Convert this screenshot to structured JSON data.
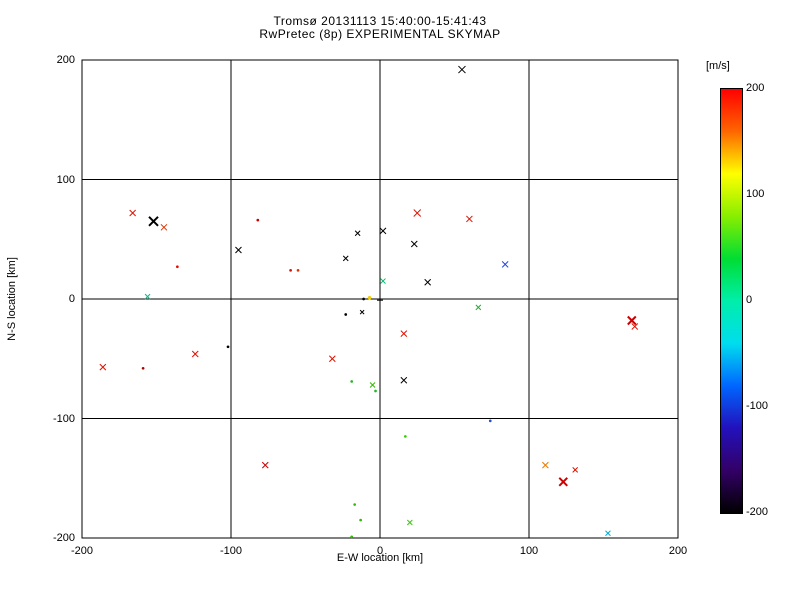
{
  "title": {
    "line1": "Tromsø 20131113 15:40:00-15:41:43",
    "line2": "RwPretec (8p) EXPERIMENTAL SKYMAP"
  },
  "axes": {
    "x_label": "E-W location [km]",
    "y_label": "N-S location [km]",
    "x_range": [
      -200,
      200
    ],
    "y_range": [
      -200,
      200
    ],
    "x_ticks": [
      -200,
      -100,
      0,
      100,
      200
    ],
    "y_ticks": [
      -200,
      -100,
      0,
      100,
      200
    ],
    "grid": "on",
    "frame_color": "#000000"
  },
  "colorbar": {
    "unit_label": "[m/s]",
    "ticks": [
      200,
      100,
      0,
      -100,
      -200
    ],
    "range": [
      -200,
      200
    ],
    "gradient_top_to_bottom": [
      "#ff0000",
      "#ff6600",
      "#ffff00",
      "#88ee00",
      "#00dd33",
      "#00eeaa",
      "#00ddee",
      "#0066ff",
      "#2211bb",
      "#330066",
      "#000000"
    ]
  },
  "chart_data": {
    "type": "scatter",
    "title": "Tromsø 20131113 15:40:00-15:41:43 / RwPretec (8p) EXPERIMENTAL SKYMAP",
    "xlabel": "E-W location [km]",
    "ylabel": "N-S location [km]",
    "xlim": [
      -200,
      200
    ],
    "ylim": [
      -200,
      200
    ],
    "color_scale": {
      "unit": "m/s",
      "min": -200,
      "max": 200,
      "map": "rainbow (red=+200, yellow=+100, green=0, blue=-100, black=-200)"
    },
    "points": [
      {
        "x": 55,
        "y": 192,
        "color": "#000000",
        "marker": "x",
        "size": 7,
        "w": 1
      },
      {
        "x": -166,
        "y": 72,
        "color": "#dd1100",
        "marker": "x",
        "size": 6,
        "w": 1
      },
      {
        "x": -152,
        "y": 65,
        "color": "#000000",
        "marker": "x",
        "size": 9,
        "w": 2
      },
      {
        "x": -145,
        "y": 60,
        "color": "#dd3300",
        "marker": "x",
        "size": 6,
        "w": 1
      },
      {
        "x": 25,
        "y": 72,
        "color": "#dd1100",
        "marker": "x",
        "size": 7,
        "w": 1
      },
      {
        "x": 60,
        "y": 67,
        "color": "#dd1100",
        "marker": "x",
        "size": 6,
        "w": 1
      },
      {
        "x": -82,
        "y": 66,
        "color": "#cc0000",
        "marker": "dot",
        "size": 3
      },
      {
        "x": -15,
        "y": 55,
        "color": "#000000",
        "marker": "x",
        "size": 5,
        "w": 1
      },
      {
        "x": 2,
        "y": 57,
        "color": "#000000",
        "marker": "x",
        "size": 6,
        "w": 1
      },
      {
        "x": -95,
        "y": 41,
        "color": "#000000",
        "marker": "x",
        "size": 6,
        "w": 1
      },
      {
        "x": 23,
        "y": 46,
        "color": "#000000",
        "marker": "x",
        "size": 6,
        "w": 1
      },
      {
        "x": -136,
        "y": 27,
        "color": "#dd1100",
        "marker": "dot",
        "size": 3
      },
      {
        "x": -60,
        "y": 24,
        "color": "#dd1100",
        "marker": "dot",
        "size": 3
      },
      {
        "x": -55,
        "y": 24,
        "color": "#dd3300",
        "marker": "dot",
        "size": 3
      },
      {
        "x": 84,
        "y": 29,
        "color": "#2244dd",
        "marker": "x",
        "size": 6,
        "w": 1
      },
      {
        "x": -23,
        "y": 34,
        "color": "#000000",
        "marker": "x",
        "size": 5,
        "w": 1
      },
      {
        "x": 32,
        "y": 14,
        "color": "#000000",
        "marker": "x",
        "size": 6,
        "w": 1
      },
      {
        "x": 2,
        "y": 15,
        "color": "#00bb66",
        "marker": "x",
        "size": 5,
        "w": 1
      },
      {
        "x": -156,
        "y": 2,
        "color": "#00bb88",
        "marker": "x",
        "size": 5,
        "w": 1
      },
      {
        "x": -11,
        "y": 0,
        "color": "#000000",
        "marker": "dot",
        "size": 3
      },
      {
        "x": -7,
        "y": 1,
        "color": "#eecc00",
        "marker": "dot",
        "size": 4
      },
      {
        "x": 0,
        "y": -1,
        "color": "#000000",
        "marker": "plus",
        "size": 6,
        "w": 1
      },
      {
        "x": -23,
        "y": -13,
        "color": "#000000",
        "marker": "dot",
        "size": 3
      },
      {
        "x": -12,
        "y": -11,
        "color": "#000000",
        "marker": "x",
        "size": 4,
        "w": 1
      },
      {
        "x": 66,
        "y": -7,
        "color": "#22aa33",
        "marker": "x",
        "size": 5,
        "w": 1
      },
      {
        "x": 169,
        "y": -18,
        "color": "#cc0000",
        "marker": "x",
        "size": 8,
        "w": 2
      },
      {
        "x": 171,
        "y": -23,
        "color": "#dd1100",
        "marker": "x",
        "size": 6,
        "w": 1
      },
      {
        "x": 16,
        "y": -29,
        "color": "#dd1100",
        "marker": "x",
        "size": 6,
        "w": 1
      },
      {
        "x": -102,
        "y": -40,
        "color": "#000000",
        "marker": "dot",
        "size": 3
      },
      {
        "x": -124,
        "y": -46,
        "color": "#dd1100",
        "marker": "x",
        "size": 6,
        "w": 1
      },
      {
        "x": -32,
        "y": -50,
        "color": "#dd1100",
        "marker": "x",
        "size": 6,
        "w": 1
      },
      {
        "x": -186,
        "y": -57,
        "color": "#dd1100",
        "marker": "x",
        "size": 6,
        "w": 1
      },
      {
        "x": -159,
        "y": -58,
        "color": "#aa0000",
        "marker": "dot",
        "size": 3
      },
      {
        "x": -19,
        "y": -69,
        "color": "#22bb22",
        "marker": "dot",
        "size": 3
      },
      {
        "x": -5,
        "y": -72,
        "color": "#33bb00",
        "marker": "x",
        "size": 5,
        "w": 1
      },
      {
        "x": 16,
        "y": -68,
        "color": "#000000",
        "marker": "x",
        "size": 6,
        "w": 1
      },
      {
        "x": -3,
        "y": -77,
        "color": "#22bb22",
        "marker": "dot",
        "size": 3
      },
      {
        "x": 17,
        "y": -115,
        "color": "#33cc00",
        "marker": "dot",
        "size": 3
      },
      {
        "x": 74,
        "y": -102,
        "color": "#2255cc",
        "marker": "dot",
        "size": 3
      },
      {
        "x": -77,
        "y": -139,
        "color": "#cc0000",
        "marker": "x",
        "size": 6,
        "w": 1
      },
      {
        "x": 111,
        "y": -139,
        "color": "#ee7700",
        "marker": "x",
        "size": 6,
        "w": 1
      },
      {
        "x": 131,
        "y": -143,
        "color": "#dd1100",
        "marker": "x",
        "size": 5,
        "w": 1
      },
      {
        "x": 123,
        "y": -153,
        "color": "#cc0000",
        "marker": "x",
        "size": 8,
        "w": 2
      },
      {
        "x": -17,
        "y": -172,
        "color": "#33bb00",
        "marker": "dot",
        "size": 3
      },
      {
        "x": -13,
        "y": -185,
        "color": "#33bb00",
        "marker": "dot",
        "size": 3
      },
      {
        "x": 20,
        "y": -187,
        "color": "#33cc00",
        "marker": "x",
        "size": 5,
        "w": 1
      },
      {
        "x": 153,
        "y": -196,
        "color": "#00aacc",
        "marker": "x",
        "size": 5,
        "w": 1
      },
      {
        "x": -19,
        "y": -199,
        "color": "#33bb00",
        "marker": "dot",
        "size": 3
      }
    ]
  }
}
